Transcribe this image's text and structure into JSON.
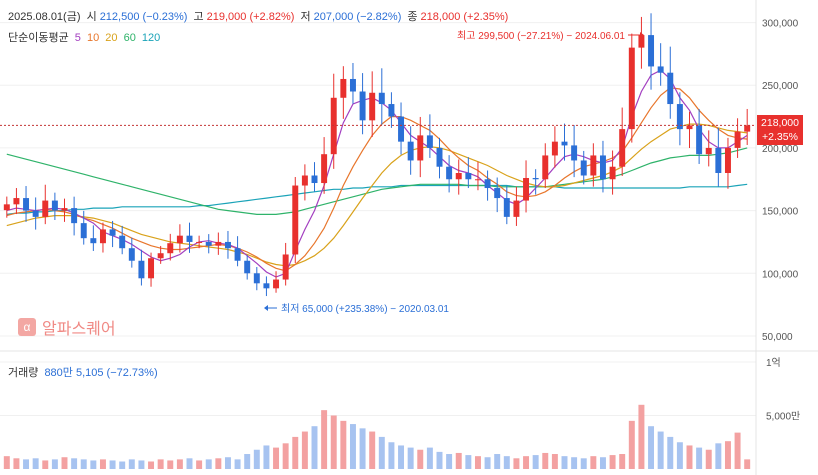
{
  "header": {
    "date": "2025.08.01(금)",
    "open_label": "시",
    "open_value": "212,500 (−0.23%)",
    "high_label": "고",
    "high_value": "219,000 (+2.82%)",
    "low_label": "저",
    "low_value": "207,000 (−2.82%)",
    "close_label": "종",
    "close_value": "218,000 (+2.35%)",
    "ma_title": "단순이동평균",
    "ma_periods": [
      "5",
      "10",
      "20",
      "60",
      "120"
    ]
  },
  "current_price": {
    "price": "218,000",
    "change": "+2.35%"
  },
  "annotations": {
    "high": "최고 299,500 (−27.21%) − 2024.06.01",
    "low": "최저 65,000 (+235.38%) − 2020.03.01"
  },
  "logo": {
    "mark": "α",
    "text": "알파스퀘어"
  },
  "volume_header": {
    "label": "거래량",
    "value": "880만 5,105 (−72.73%)"
  },
  "colors": {
    "up": "#e8302d",
    "down": "#2b6fd6",
    "vol_up": "#f3a1a1",
    "vol_down": "#a7c3f0",
    "ma5": "#a33fc0",
    "ma10": "#e8762c",
    "ma20": "#d9a21b",
    "ma60": "#2fb36a",
    "ma120": "#1aa3b8"
  },
  "chart_data": {
    "type": "candlestick",
    "interval": "monthly",
    "period": "2018 – 2025.08",
    "y_axis": {
      "ticks": [
        300000,
        250000,
        200000,
        150000,
        100000,
        50000
      ],
      "tick_labels": [
        "300,000",
        "250,000",
        "200,000",
        "150,000",
        "100,000",
        "50,000"
      ],
      "range": [
        38000,
        318000
      ]
    },
    "volume_axis": {
      "ticks": [
        100000000,
        50000000
      ],
      "tick_labels": [
        "1억",
        "5,000만"
      ],
      "range": [
        0,
        100000000
      ]
    },
    "closes": [
      155000,
      160000,
      150000,
      145000,
      158000,
      150000,
      152000,
      140000,
      128000,
      124000,
      135000,
      130000,
      120000,
      110000,
      96000,
      112000,
      116000,
      124000,
      130000,
      125000,
      125000,
      122000,
      125000,
      120000,
      110000,
      100000,
      92000,
      88000,
      95000,
      115000,
      170000,
      178000,
      172000,
      195000,
      240000,
      255000,
      245000,
      222000,
      244000,
      235000,
      225000,
      205000,
      190000,
      210000,
      200000,
      185000,
      175000,
      180000,
      175000,
      175000,
      168000,
      160000,
      145000,
      158000,
      176000,
      175000,
      194000,
      205000,
      202000,
      190000,
      178000,
      194000,
      175000,
      185000,
      215000,
      280000,
      290000,
      265000,
      260000,
      235000,
      215000,
      218000,
      195000,
      200000,
      180000,
      200000,
      213000,
      218000
    ],
    "ma5": [
      150000,
      152000,
      151000,
      150000,
      151000,
      152000,
      151000,
      148000,
      144000,
      140000,
      133000,
      130000,
      127000,
      123000,
      118000,
      113000,
      110000,
      112000,
      115000,
      121000,
      125000,
      126000,
      124000,
      123000,
      120000,
      114000,
      108000,
      101000,
      97000,
      100000,
      118000,
      135000,
      150000,
      170000,
      195000,
      220000,
      235000,
      238000,
      240000,
      236000,
      230000,
      220000,
      210000,
      205000,
      200000,
      193000,
      186000,
      182000,
      180000,
      177000,
      170000,
      164000,
      158000,
      155000,
      160000,
      168000,
      176000,
      185000,
      193000,
      195000,
      193000,
      190000,
      188000,
      190000,
      200000,
      225000,
      245000,
      258000,
      262000,
      255000,
      240000,
      230000,
      215000,
      205000,
      200000,
      200000,
      205000,
      210000
    ],
    "ma10": [
      146000,
      148000,
      149000,
      150000,
      151000,
      150000,
      149000,
      147000,
      144000,
      142000,
      139000,
      136000,
      132000,
      128000,
      125000,
      122000,
      120000,
      119000,
      119000,
      120000,
      121000,
      122000,
      123000,
      122000,
      120000,
      117000,
      113000,
      108000,
      104000,
      102000,
      107000,
      114000,
      124000,
      136000,
      152000,
      170000,
      185000,
      198000,
      210000,
      219000,
      225000,
      225000,
      222000,
      218000,
      214000,
      207000,
      199000,
      192000,
      186000,
      182000,
      176000,
      171000,
      165000,
      162000,
      161000,
      162000,
      165000,
      170000,
      176000,
      181000,
      185000,
      187000,
      189000,
      192000,
      197000,
      208000,
      220000,
      232000,
      242000,
      248000,
      247000,
      240000,
      230000,
      222000,
      215000,
      210000,
      208000,
      207000
    ],
    "ma20": [
      138000,
      140000,
      142000,
      144000,
      145000,
      146000,
      146000,
      146000,
      145000,
      144000,
      142000,
      140000,
      137000,
      134000,
      131000,
      129000,
      127000,
      125000,
      124000,
      123000,
      122000,
      121000,
      120000,
      119000,
      117000,
      115000,
      112000,
      109000,
      107000,
      106000,
      107000,
      110000,
      114000,
      120000,
      128000,
      138000,
      149000,
      160000,
      170000,
      180000,
      188000,
      194000,
      198000,
      200000,
      201000,
      200000,
      198000,
      195000,
      192000,
      189000,
      186000,
      182000,
      178000,
      175000,
      172000,
      170000,
      169000,
      169000,
      170000,
      172000,
      174000,
      176000,
      178000,
      181000,
      185000,
      192000,
      199000,
      205000,
      210000,
      215000,
      217000,
      219000,
      219000,
      218000,
      216000,
      214000,
      213000,
      212000
    ],
    "ma60": [
      195000,
      193000,
      191000,
      189000,
      187000,
      185000,
      183000,
      181000,
      179000,
      177000,
      175000,
      173000,
      171000,
      169000,
      167000,
      165000,
      163000,
      161000,
      159000,
      157000,
      155000,
      153000,
      151000,
      150000,
      149000,
      148000,
      147000,
      147000,
      147000,
      148000,
      149000,
      151000,
      153000,
      155000,
      157000,
      159000,
      161000,
      163000,
      165000,
      167000,
      168000,
      169000,
      170000,
      171000,
      171000,
      171000,
      171000,
      171000,
      170000,
      170000,
      170000,
      169000,
      169000,
      169000,
      169000,
      169000,
      169000,
      170000,
      171000,
      172000,
      173000,
      174000,
      175000,
      177000,
      179000,
      182000,
      185000,
      188000,
      190000,
      192000,
      193000,
      194000,
      194000,
      194000,
      195000,
      196000,
      198000,
      200000
    ],
    "ma120": [
      147000,
      148000,
      148000,
      149000,
      149000,
      150000,
      150000,
      151000,
      151000,
      152000,
      152000,
      152000,
      153000,
      153000,
      153000,
      153000,
      153000,
      153000,
      153000,
      153000,
      154000,
      154000,
      155000,
      156000,
      157000,
      158000,
      159000,
      160000,
      161000,
      162000,
      163000,
      164000,
      165000,
      166000,
      167000,
      167000,
      168000,
      168000,
      169000,
      169000,
      169000,
      170000,
      170000,
      170000,
      170000,
      170000,
      170000,
      170000,
      170000,
      170000,
      170000,
      170000,
      170000,
      169000,
      169000,
      169000,
      169000,
      169000,
      168000,
      168000,
      168000,
      168000,
      168000,
      168000,
      168000,
      168000,
      168000,
      168000,
      168000,
      168000,
      168000,
      169000,
      169000,
      169000,
      169000,
      169000,
      170000,
      171000
    ],
    "volumes_millions": [
      12,
      10,
      9,
      10,
      8,
      9,
      11,
      10,
      9,
      8,
      9,
      8,
      7,
      9,
      8,
      7,
      9,
      8,
      9,
      10,
      8,
      9,
      10,
      11,
      9,
      14,
      18,
      22,
      20,
      24,
      30,
      35,
      40,
      55,
      50,
      45,
      42,
      38,
      35,
      30,
      25,
      22,
      20,
      18,
      20,
      16,
      14,
      15,
      13,
      12,
      11,
      14,
      12,
      10,
      12,
      13,
      15,
      14,
      12,
      11,
      10,
      12,
      11,
      13,
      14,
      45,
      60,
      40,
      35,
      30,
      25,
      22,
      20,
      18,
      24,
      26,
      34,
      9
    ]
  }
}
